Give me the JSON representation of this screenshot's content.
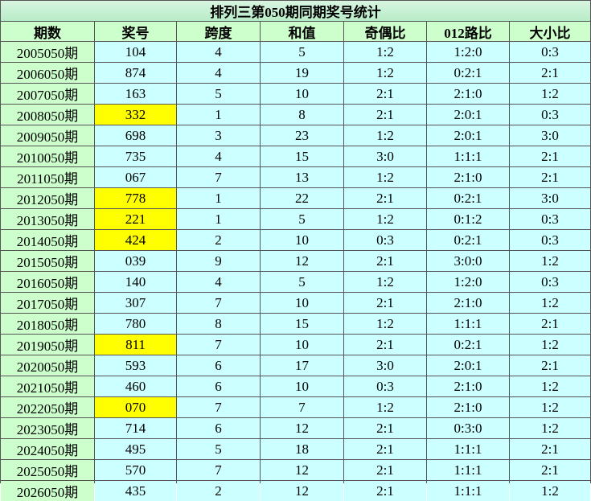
{
  "table": {
    "title": "排列三第050期同期奖号统计",
    "header": [
      "期数",
      "奖号",
      "跨度",
      "和值",
      "奇偶比",
      "012路比",
      "大小比"
    ],
    "rows": [
      [
        "2005050期",
        "104",
        "4",
        "5",
        "1:2",
        "1:2:0",
        "0:3"
      ],
      [
        "2006050期",
        "874",
        "4",
        "19",
        "1:2",
        "0:2:1",
        "2:1"
      ],
      [
        "2007050期",
        "163",
        "5",
        "10",
        "2:1",
        "2:1:0",
        "1:2"
      ],
      [
        "2008050期",
        "332",
        "1",
        "8",
        "2:1",
        "2:0:1",
        "0:3"
      ],
      [
        "2009050期",
        "698",
        "3",
        "23",
        "1:2",
        "2:0:1",
        "3:0"
      ],
      [
        "2010050期",
        "735",
        "4",
        "15",
        "3:0",
        "1:1:1",
        "2:1"
      ],
      [
        "2011050期",
        "067",
        "7",
        "13",
        "1:2",
        "2:1:0",
        "2:1"
      ],
      [
        "2012050期",
        "778",
        "1",
        "22",
        "2:1",
        "0:2:1",
        "3:0"
      ],
      [
        "2013050期",
        "221",
        "1",
        "5",
        "1:2",
        "0:1:2",
        "0:3"
      ],
      [
        "2014050期",
        "424",
        "2",
        "10",
        "0:3",
        "0:2:1",
        "0:3"
      ],
      [
        "2015050期",
        "039",
        "9",
        "12",
        "2:1",
        "3:0:0",
        "1:2"
      ],
      [
        "2016050期",
        "140",
        "4",
        "5",
        "1:2",
        "1:2:0",
        "0:3"
      ],
      [
        "2017050期",
        "307",
        "7",
        "10",
        "2:1",
        "2:1:0",
        "1:2"
      ],
      [
        "2018050期",
        "780",
        "8",
        "15",
        "1:2",
        "1:1:1",
        "2:1"
      ],
      [
        "2019050期",
        "811",
        "7",
        "10",
        "2:1",
        "0:2:1",
        "1:2"
      ],
      [
        "2020050期",
        "593",
        "6",
        "17",
        "3:0",
        "2:0:1",
        "2:1"
      ],
      [
        "2021050期",
        "460",
        "6",
        "10",
        "0:3",
        "2:1:0",
        "1:2"
      ],
      [
        "2022050期",
        "070",
        "7",
        "7",
        "1:2",
        "2:1:0",
        "1:2"
      ],
      [
        "2023050期",
        "714",
        "6",
        "12",
        "2:1",
        "0:3:0",
        "1:2"
      ],
      [
        "2024050期",
        "495",
        "5",
        "18",
        "2:1",
        "1:1:1",
        "2:1"
      ],
      [
        "2025050期",
        "570",
        "7",
        "12",
        "2:1",
        "1:1:1",
        "2:1"
      ],
      [
        "2026050期",
        "435",
        "2",
        "12",
        "2:1",
        "1:1:1",
        "1:2"
      ]
    ],
    "highlighted_rows": [
      3,
      7,
      8,
      9,
      14,
      17
    ],
    "highlight_color": "#ffff00"
  }
}
